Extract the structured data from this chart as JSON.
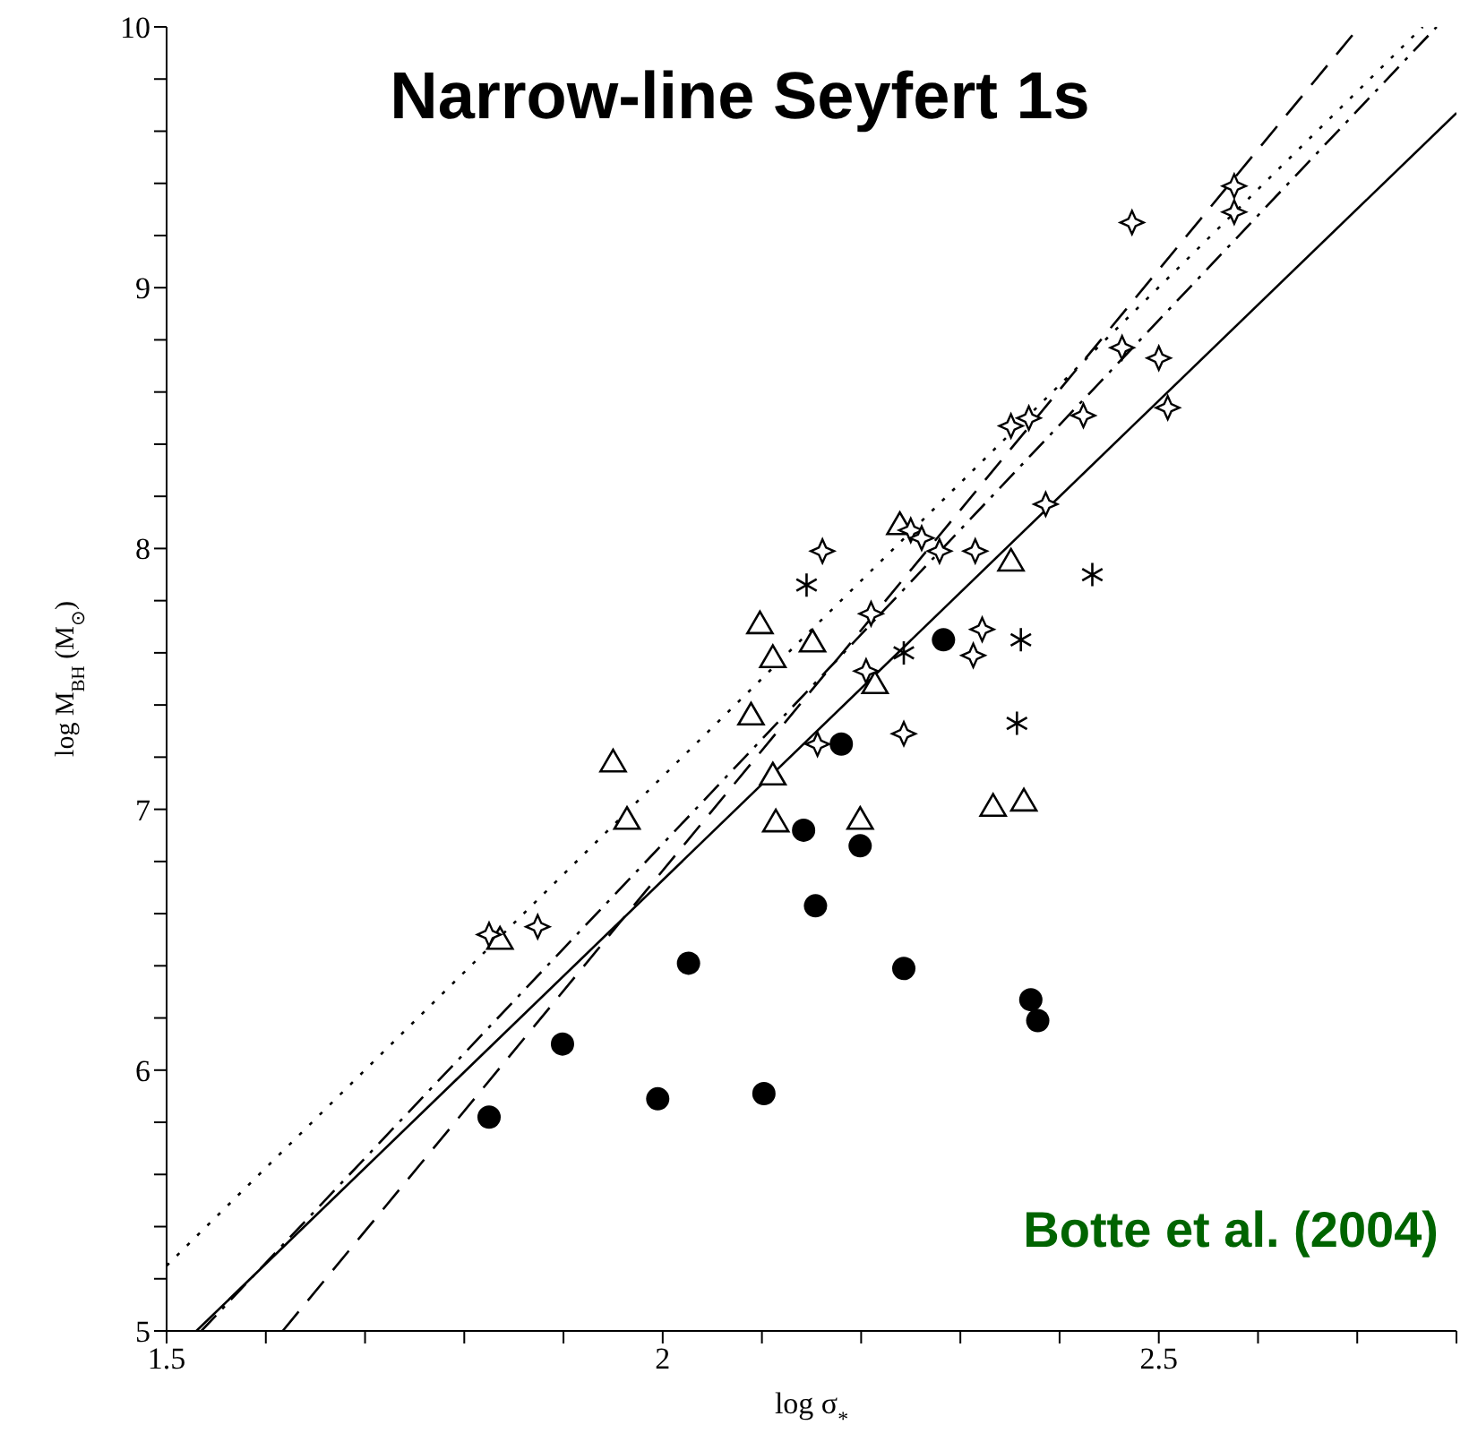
{
  "chart_data": {
    "type": "scatter",
    "title": "Narrow-line Seyfert 1s",
    "xlabel": "log σ$_{*}$",
    "ylabel": "log M$_{BH}$ (M$_{⊙}$)",
    "annotations": [
      "Botte et al. (2004)"
    ],
    "xlim": [
      1.5,
      2.8
    ],
    "xticks": [
      {
        "value": 1.5,
        "label": "1.5"
      },
      {
        "value": 1.6,
        "label": null
      },
      {
        "value": 1.7,
        "label": null
      },
      {
        "value": 1.8,
        "label": null
      },
      {
        "value": 1.9,
        "label": null
      },
      2,
      {
        "value": 2.1,
        "label": null
      },
      {
        "value": 2.2,
        "label": null
      },
      {
        "value": 2.3,
        "label": null
      },
      {
        "value": 2.4,
        "label": null
      },
      {
        "value": 2.5,
        "label": "2.5"
      },
      {
        "value": 2.6,
        "label": null
      },
      {
        "value": 2.7,
        "label": null
      },
      {
        "value": 2.8,
        "label": null
      }
    ],
    "ylim": [
      5,
      10
    ],
    "yticks": [
      5,
      {
        "value": 5.2,
        "label": null
      },
      {
        "value": 5.4,
        "label": null
      },
      {
        "value": 5.6,
        "label": null
      },
      {
        "value": 5.8,
        "label": null
      },
      6,
      {
        "value": 6.2,
        "label": null
      },
      {
        "value": 6.4,
        "label": null
      },
      {
        "value": 6.6,
        "label": null
      },
      {
        "value": 6.8,
        "label": null
      },
      7,
      {
        "value": 7.2,
        "label": null
      },
      {
        "value": 7.4,
        "label": null
      },
      {
        "value": 7.6,
        "label": null
      },
      {
        "value": 7.8,
        "label": null
      },
      8,
      {
        "value": 8.2,
        "label": null
      },
      {
        "value": 8.4,
        "label": null
      },
      {
        "value": 8.6,
        "label": null
      },
      {
        "value": 8.8,
        "label": null
      },
      9,
      {
        "value": 9.2,
        "label": null
      },
      {
        "value": 9.4,
        "label": null
      },
      {
        "value": 9.6,
        "label": null
      },
      {
        "value": 9.8,
        "label": null
      },
      10
    ],
    "series": [
      {
        "marker": "circle",
        "color": "#000000",
        "x": [
          2.142,
          2.199,
          2.154,
          2.026,
          2.243,
          2.371,
          2.378,
          1.899,
          1.995,
          2.102,
          1.825,
          2.283,
          2.18
        ],
        "values": [
          6.92,
          6.86,
          6.63,
          6.41,
          6.39,
          6.27,
          6.19,
          6.1,
          5.89,
          5.91,
          5.82,
          7.65,
          7.25
        ]
      },
      {
        "marker": "triangle",
        "color": "#000000",
        "x": [
          2.098,
          2.111,
          2.151,
          2.089,
          1.95,
          1.964,
          2.111,
          2.114,
          2.199,
          2.333,
          2.364,
          1.836,
          2.239,
          2.351,
          2.214
        ],
        "values": [
          7.71,
          7.58,
          7.64,
          7.36,
          7.18,
          6.96,
          7.13,
          6.95,
          6.96,
          7.01,
          7.03,
          6.5,
          8.09,
          7.95,
          7.48
        ]
      },
      {
        "marker": "star",
        "color": "#000000",
        "x": [
          2.576,
          2.576,
          2.473,
          2.463,
          2.5,
          2.509,
          2.351,
          2.369,
          2.424,
          2.386,
          2.25,
          2.261,
          2.279,
          2.315,
          2.161,
          2.21,
          2.322,
          2.313,
          2.205,
          1.825,
          1.874,
          2.156,
          2.243
        ],
        "values": [
          9.39,
          9.29,
          9.25,
          8.77,
          8.73,
          8.54,
          8.47,
          8.5,
          8.51,
          8.17,
          8.07,
          8.04,
          7.99,
          7.99,
          7.99,
          7.75,
          7.69,
          7.59,
          7.53,
          6.52,
          6.55,
          7.25,
          7.29
        ]
      },
      {
        "marker": "cross",
        "color": "#000000",
        "x": [
          2.145,
          2.433,
          2.361,
          2.243,
          2.357
        ],
        "values": [
          7.86,
          7.9,
          7.65,
          7.6,
          7.33
        ]
      },
      {
        "type": "line",
        "line_style": "solid",
        "color": "#000000",
        "x": [
          1.53,
          2.8
        ],
        "values": [
          5,
          9.67
        ]
      },
      {
        "type": "line",
        "line_style": "dotted",
        "color": "#000000",
        "x": [
          1.5,
          2.766
        ],
        "values": [
          5.25,
          10
        ]
      },
      {
        "type": "line",
        "line_style": "dashdot",
        "color": "#000000",
        "x": [
          1.535,
          2.78
        ],
        "values": [
          5,
          10
        ]
      },
      {
        "type": "line",
        "line_style": "dashed",
        "color": "#000000",
        "x": [
          1.617,
          2.702
        ],
        "values": [
          5,
          10
        ]
      }
    ]
  }
}
